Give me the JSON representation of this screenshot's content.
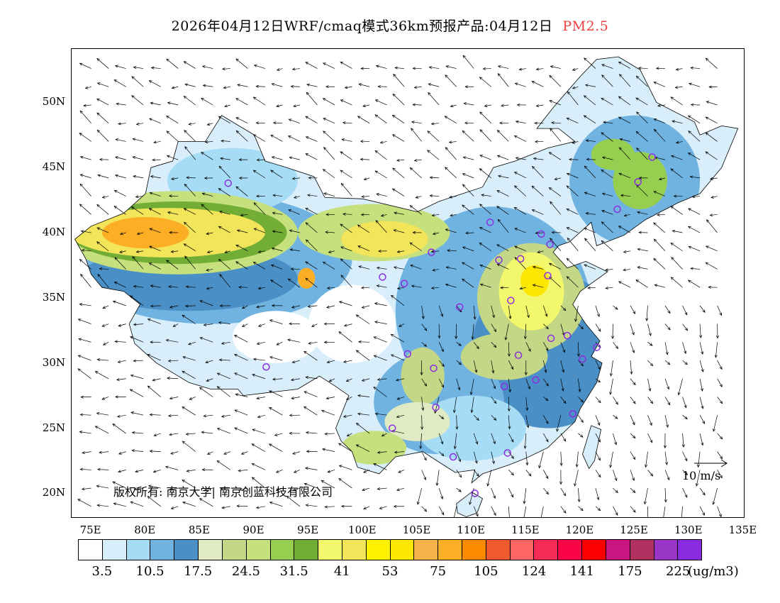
{
  "title": {
    "main": "2026年04月12日WRF/cmaq模式36km预报产品:04月12日",
    "pollutant": "PM2.5"
  },
  "map": {
    "lat_labels": [
      "50N",
      "45N",
      "40N",
      "35N",
      "30N",
      "25N",
      "20N"
    ],
    "lat_values": [
      50,
      45,
      40,
      35,
      30,
      25,
      20
    ],
    "lon_labels": [
      "75E",
      "80E",
      "85E",
      "90E",
      "95E",
      "100E",
      "105E",
      "110E",
      "115E",
      "120E",
      "125E",
      "130E",
      "135E"
    ],
    "lon_values": [
      75,
      80,
      85,
      90,
      95,
      100,
      105,
      110,
      115,
      120,
      125,
      130,
      135
    ],
    "copyright": "版权所有: 南京大学| 南京创蓝科技有限公司",
    "vector_scale": "10 m/s"
  },
  "colorbar": {
    "colors": [
      "#ffffff",
      "#d8eefa",
      "#a6dcf5",
      "#70b3e0",
      "#4a8fc5",
      "#e0ebc4",
      "#c3d786",
      "#c5e07c",
      "#96cf50",
      "#72ad36",
      "#f3f76b",
      "#f2e55a",
      "#fef200",
      "#fde600",
      "#f6b54a",
      "#fcae24",
      "#fd8a00",
      "#ef5b2c",
      "#fe6565",
      "#f62c56",
      "#fb0547",
      "#fb0000",
      "#c91680",
      "#b13260",
      "#9935c7",
      "#8a2de0"
    ],
    "labels": [
      "3.5",
      "10.5",
      "17.5",
      "24.5",
      "31.5",
      "41",
      "53",
      "75",
      "105",
      "124",
      "141",
      "175",
      "225"
    ],
    "unit": "(ug/m3)"
  }
}
